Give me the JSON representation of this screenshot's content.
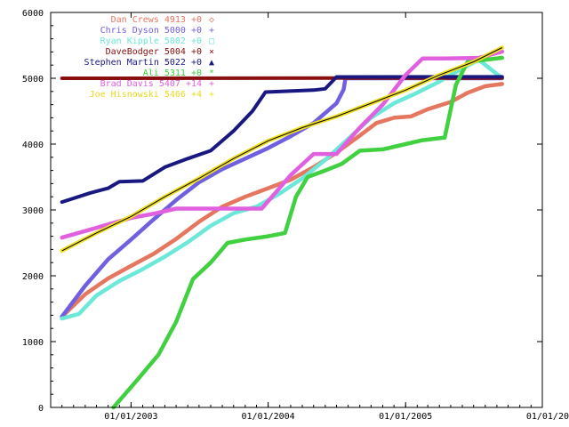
{
  "chart_data": {
    "type": "line",
    "title": "",
    "xlabel": "",
    "ylabel": "",
    "xlim": [
      "2002-06-01",
      "2005-12-31"
    ],
    "ylim": [
      0,
      6000
    ],
    "grid": false,
    "legend_position": "top-right",
    "x_ticks": [
      "01/01/2003",
      "01/01/2004",
      "01/01/2005",
      "01/01/20"
    ],
    "y_ticks": [
      0,
      1000,
      2000,
      3000,
      4000,
      5000,
      6000
    ],
    "series": [
      {
        "name": "Dan Crews 4913 +0",
        "legend": "Dan Crews 4913 +0",
        "color": "#e5765f",
        "marker": "◇",
        "points": [
          [
            "2002-07-01",
            1380
          ],
          [
            "2002-09-01",
            1720
          ],
          [
            "2002-11-01",
            1960
          ],
          [
            "2003-01-01",
            2150
          ],
          [
            "2003-03-01",
            2330
          ],
          [
            "2003-05-01",
            2560
          ],
          [
            "2003-07-01",
            2820
          ],
          [
            "2003-09-01",
            3050
          ],
          [
            "2003-11-01",
            3200
          ],
          [
            "2004-01-01",
            3330
          ],
          [
            "2004-03-01",
            3460
          ],
          [
            "2004-05-01",
            3650
          ],
          [
            "2004-07-01",
            3870
          ],
          [
            "2004-09-01",
            4130
          ],
          [
            "2004-10-15",
            4320
          ],
          [
            "2004-12-01",
            4400
          ],
          [
            "2005-01-15",
            4420
          ],
          [
            "2005-03-01",
            4530
          ],
          [
            "2005-05-01",
            4640
          ],
          [
            "2005-06-15",
            4780
          ],
          [
            "2005-08-01",
            4880
          ],
          [
            "2005-09-15",
            4913
          ]
        ]
      },
      {
        "name": "Chris Dyson 5000 +0",
        "legend": "Chris Dyson 5000 +0",
        "color": "#7060e0",
        "marker": "+",
        "points": [
          [
            "2002-07-01",
            1380
          ],
          [
            "2002-09-01",
            1850
          ],
          [
            "2002-11-01",
            2250
          ],
          [
            "2003-01-01",
            2550
          ],
          [
            "2003-03-01",
            2850
          ],
          [
            "2003-05-01",
            3150
          ],
          [
            "2003-07-01",
            3420
          ],
          [
            "2003-09-01",
            3620
          ],
          [
            "2003-11-01",
            3780
          ],
          [
            "2004-01-01",
            3940
          ],
          [
            "2004-03-01",
            4120
          ],
          [
            "2004-05-01",
            4320
          ],
          [
            "2004-07-01",
            4620
          ],
          [
            "2004-07-20",
            4830
          ],
          [
            "2004-07-25",
            5000
          ],
          [
            "2005-09-15",
            5000
          ]
        ]
      },
      {
        "name": "Ryan Kipple 5002 +0",
        "legend": "Ryan Kipple 5002 +0",
        "color": "#6ce8d8",
        "marker": "□",
        "points": [
          [
            "2002-07-01",
            1350
          ],
          [
            "2002-08-15",
            1420
          ],
          [
            "2002-10-01",
            1700
          ],
          [
            "2002-12-01",
            1920
          ],
          [
            "2003-02-01",
            2100
          ],
          [
            "2003-04-01",
            2290
          ],
          [
            "2003-06-01",
            2510
          ],
          [
            "2003-08-01",
            2760
          ],
          [
            "2003-10-01",
            2950
          ],
          [
            "2003-12-01",
            3050
          ],
          [
            "2004-02-01",
            3250
          ],
          [
            "2004-04-01",
            3480
          ],
          [
            "2004-06-01",
            3760
          ],
          [
            "2004-08-01",
            4080
          ],
          [
            "2004-10-01",
            4400
          ],
          [
            "2004-12-01",
            4620
          ],
          [
            "2005-02-01",
            4780
          ],
          [
            "2005-04-01",
            4950
          ],
          [
            "2005-06-01",
            5150
          ],
          [
            "2005-07-15",
            5280
          ],
          [
            "2005-09-15",
            5002
          ]
        ]
      },
      {
        "name": "DaveBodger 5004 +0",
        "legend": "DaveBodger 5004 +0",
        "color": "#8a1010",
        "marker": "×",
        "points": [
          [
            "2002-07-01",
            5000
          ],
          [
            "2005-09-15",
            5004
          ]
        ]
      },
      {
        "name": "Stephen Martin 5022 +0",
        "legend": "Stephen Martin 5022 +0",
        "color": "#181880",
        "marker": "▲",
        "points": [
          [
            "2002-07-01",
            3120
          ],
          [
            "2002-09-15",
            3260
          ],
          [
            "2002-11-01",
            3330
          ],
          [
            "2002-12-01",
            3430
          ],
          [
            "2003-02-01",
            3440
          ],
          [
            "2003-04-01",
            3650
          ],
          [
            "2003-06-01",
            3780
          ],
          [
            "2003-08-01",
            3900
          ],
          [
            "2003-10-01",
            4200
          ],
          [
            "2003-11-20",
            4500
          ],
          [
            "2003-12-25",
            4790
          ],
          [
            "2004-05-01",
            4820
          ],
          [
            "2004-06-01",
            4840
          ],
          [
            "2004-07-01",
            5020
          ],
          [
            "2005-09-15",
            5022
          ]
        ]
      },
      {
        "name": "Ali 5311 +0",
        "legend": "Ali 5311 +0",
        "color": "#40d040",
        "marker": "*",
        "points": [
          [
            "2002-11-15",
            0
          ],
          [
            "2003-01-15",
            400
          ],
          [
            "2003-03-15",
            800
          ],
          [
            "2003-05-01",
            1300
          ],
          [
            "2003-06-15",
            1950
          ],
          [
            "2003-08-01",
            2200
          ],
          [
            "2003-09-15",
            2500
          ],
          [
            "2003-11-01",
            2550
          ],
          [
            "2004-01-01",
            2600
          ],
          [
            "2004-02-15",
            2650
          ],
          [
            "2004-03-15",
            3200
          ],
          [
            "2004-04-15",
            3500
          ],
          [
            "2004-06-01",
            3600
          ],
          [
            "2004-07-15",
            3700
          ],
          [
            "2004-09-01",
            3900
          ],
          [
            "2004-11-01",
            3920
          ],
          [
            "2005-01-01",
            4000
          ],
          [
            "2005-02-15",
            4060
          ],
          [
            "2005-04-15",
            4100
          ],
          [
            "2005-05-15",
            4900
          ],
          [
            "2005-06-15",
            5250
          ],
          [
            "2005-09-15",
            5311
          ]
        ]
      },
      {
        "name": "Brad Davis 5407 +14",
        "legend": "Brad Davis 5407 +14",
        "color": "#e060e0",
        "marker": "+",
        "points": [
          [
            "2002-07-01",
            2580
          ],
          [
            "2002-09-01",
            2680
          ],
          [
            "2002-11-01",
            2780
          ],
          [
            "2003-01-01",
            2880
          ],
          [
            "2003-03-01",
            2940
          ],
          [
            "2003-05-01",
            3020
          ],
          [
            "2003-07-01",
            3020
          ],
          [
            "2003-09-01",
            3020
          ],
          [
            "2003-12-15",
            3020
          ],
          [
            "2004-03-01",
            3530
          ],
          [
            "2004-05-01",
            3850
          ],
          [
            "2004-07-01",
            3850
          ],
          [
            "2004-09-01",
            4250
          ],
          [
            "2004-11-01",
            4600
          ],
          [
            "2005-01-01",
            5050
          ],
          [
            "2005-02-15",
            5300
          ],
          [
            "2005-04-01",
            5300
          ],
          [
            "2005-07-15",
            5310
          ],
          [
            "2005-09-15",
            5407
          ]
        ]
      },
      {
        "name": "Joe Hisnowski 5466 +4",
        "legend": "Joe Hisnowski 5466 +4",
        "color": "#f0e020",
        "marker": "+",
        "points": [
          [
            "2002-07-01",
            2380
          ],
          [
            "2002-10-01",
            2650
          ],
          [
            "2003-01-01",
            2900
          ],
          [
            "2003-04-01",
            3200
          ],
          [
            "2003-07-01",
            3480
          ],
          [
            "2003-10-01",
            3780
          ],
          [
            "2004-01-01",
            4050
          ],
          [
            "2004-04-01",
            4250
          ],
          [
            "2004-07-01",
            4420
          ],
          [
            "2004-10-01",
            4620
          ],
          [
            "2005-01-01",
            4820
          ],
          [
            "2005-04-01",
            5050
          ],
          [
            "2005-07-01",
            5250
          ],
          [
            "2005-09-15",
            5466
          ]
        ]
      }
    ]
  }
}
